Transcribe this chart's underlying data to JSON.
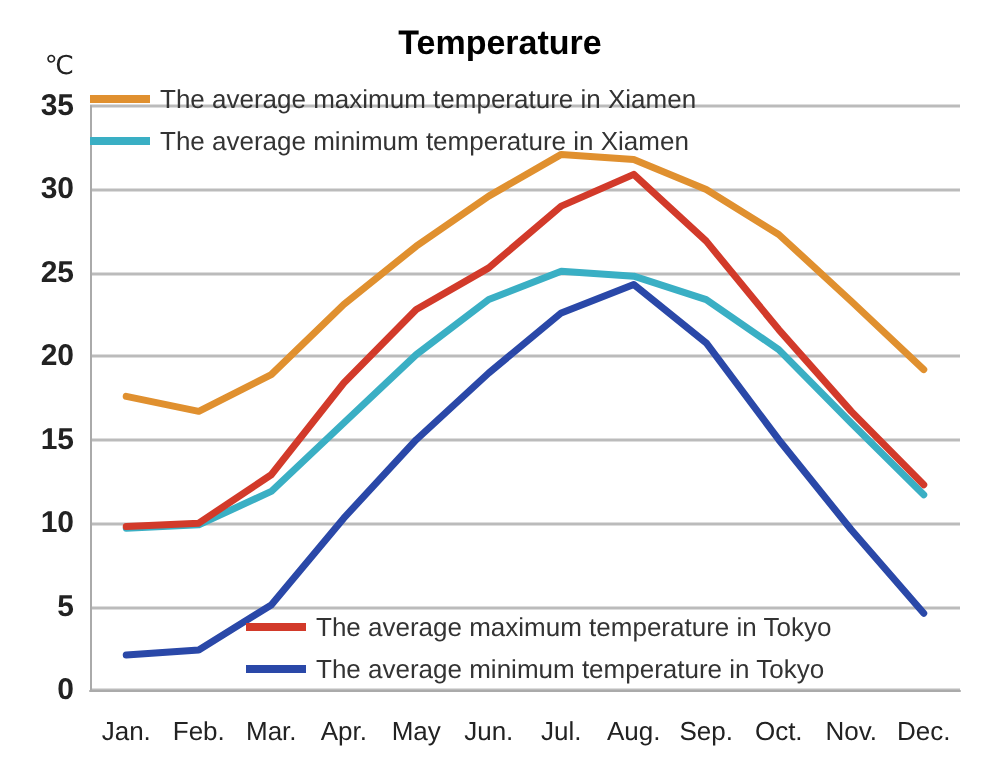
{
  "chart_data": {
    "type": "line",
    "title": "Temperature",
    "ylabel": "℃",
    "categories": [
      "Jan.",
      "Feb.",
      "Mar.",
      "Apr.",
      "May",
      "Jun.",
      "Jul.",
      "Aug.",
      "Sep.",
      "Oct.",
      "Nov.",
      "Dec."
    ],
    "series": [
      {
        "name": "The average maximum temperature in Xiamen",
        "color": "#e0902f",
        "values": [
          17.6,
          16.7,
          18.9,
          23.1,
          26.6,
          29.6,
          32.1,
          31.8,
          30.0,
          27.3,
          23.3,
          19.2
        ]
      },
      {
        "name": "The average minimum temperature in Xiamen",
        "color": "#3aafc4",
        "values": [
          9.7,
          9.9,
          11.9,
          16.0,
          20.1,
          23.4,
          25.1,
          24.8,
          23.4,
          20.4,
          16.0,
          11.7
        ]
      },
      {
        "name": "The average maximum temperature in Tokyo",
        "color": "#d23a2a",
        "values": [
          9.8,
          10.0,
          12.9,
          18.4,
          22.8,
          25.3,
          29.0,
          30.9,
          26.9,
          21.6,
          16.7,
          12.3
        ]
      },
      {
        "name": "The average minimum temperature in Tokyo",
        "color": "#2a48a8",
        "values": [
          2.1,
          2.4,
          5.1,
          10.3,
          15.0,
          19.0,
          22.6,
          24.3,
          20.8,
          15.0,
          9.6,
          4.6
        ]
      }
    ],
    "ylim": [
      0,
      35
    ],
    "yticks": [
      0,
      5,
      10,
      15,
      20,
      25,
      30,
      35
    ],
    "grid": "y",
    "legend": "top left",
    "marker": "none",
    "line_style": "solid"
  }
}
